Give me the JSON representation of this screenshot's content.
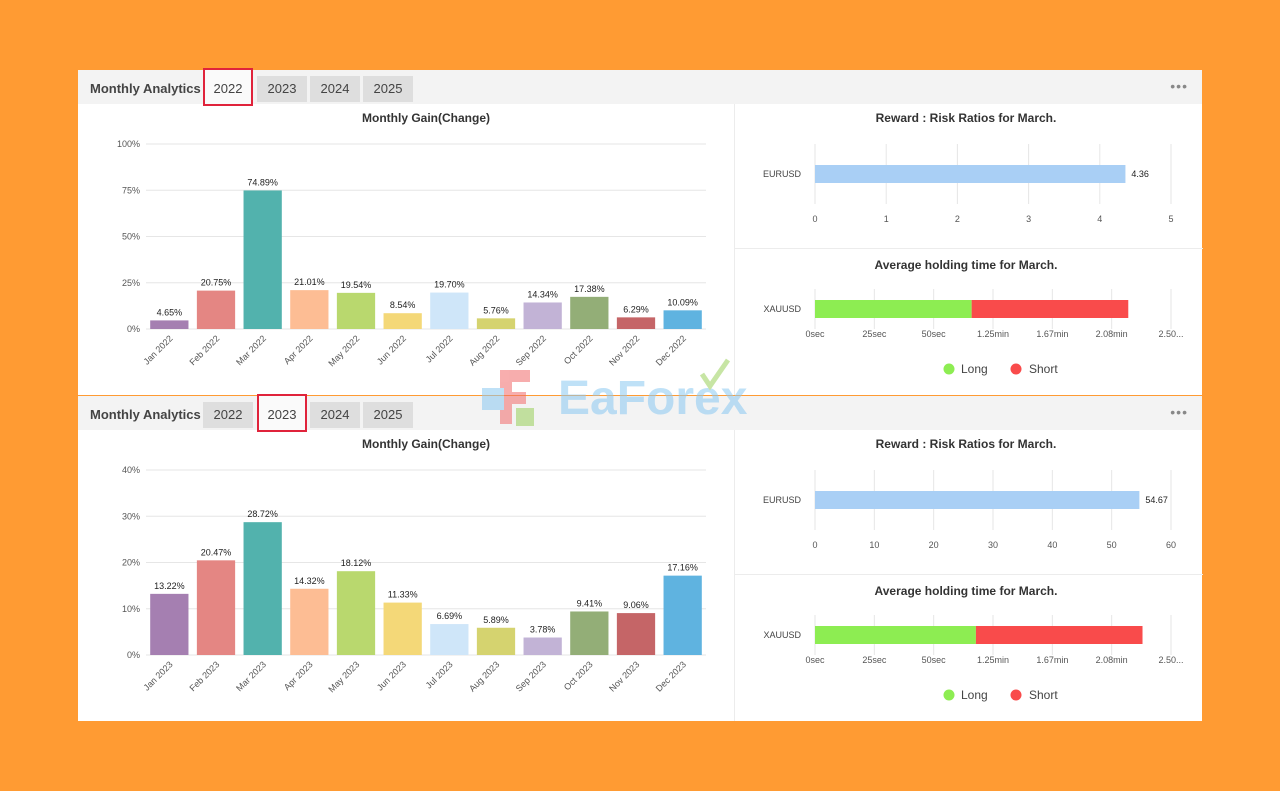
{
  "colors": [
    "#a57fb1",
    "#e48683",
    "#52b2ad",
    "#fdbd94",
    "#b9d86e",
    "#f4d878",
    "#cfe6f9",
    "#d5d36f",
    "#c2b3d6",
    "#93ae77",
    "#c56567",
    "#5fb3e0"
  ],
  "brand": {
    "text": "EaForex"
  },
  "panels": [
    {
      "title": "Monthly Analytics",
      "tabs": [
        "2022",
        "2023",
        "2024",
        "2025"
      ],
      "active_tab": 0,
      "more_label": "•••",
      "gain_chart": {
        "type": "bar",
        "title": "Monthly Gain(Change)",
        "categories": [
          "Jan 2022",
          "Feb 2022",
          "Mar 2022",
          "Apr 2022",
          "May 2022",
          "Jun 2022",
          "Jul 2022",
          "Aug 2022",
          "Sep 2022",
          "Oct 2022",
          "Nov 2022",
          "Dec 2022"
        ],
        "values": [
          4.65,
          20.75,
          74.89,
          21.01,
          19.54,
          8.54,
          19.7,
          5.76,
          14.34,
          17.38,
          6.29,
          10.09
        ],
        "labels": [
          "4.65%",
          "20.75%",
          "74.89%",
          "21.01%",
          "19.54%",
          "8.54%",
          "19.70%",
          "5.76%",
          "14.34%",
          "17.38%",
          "6.29%",
          "10.09%"
        ],
        "yticks": [
          "0%",
          "25%",
          "50%",
          "75%",
          "100%"
        ],
        "ylim": [
          0,
          100
        ]
      },
      "rr_chart": {
        "type": "bar",
        "title": "Reward : Risk Ratios for March.",
        "category": "EURUSD",
        "value": 4.36,
        "label": "4.36",
        "xticks": [
          "0",
          "1",
          "2",
          "3",
          "4",
          "5"
        ],
        "xlim": [
          0,
          5
        ],
        "color": "#a9cff5"
      },
      "hold_chart": {
        "type": "bar",
        "title": "Average holding time for March.",
        "category": "XAUUSD",
        "long_value": 1.1,
        "short_value": 1.1,
        "xticks": [
          "0sec",
          "25sec",
          "50sec",
          "1.25min",
          "1.67min",
          "2.08min",
          "2.50..."
        ],
        "xlim": [
          0,
          2.5
        ],
        "legend": [
          "Long",
          "Short"
        ],
        "long_color": "#8ded52",
        "short_color": "#f94b4b"
      }
    },
    {
      "title": "Monthly Analytics",
      "tabs": [
        "2022",
        "2023",
        "2024",
        "2025"
      ],
      "active_tab": 1,
      "more_label": "•••",
      "gain_chart": {
        "type": "bar",
        "title": "Monthly Gain(Change)",
        "categories": [
          "Jan 2023",
          "Feb 2023",
          "Mar 2023",
          "Apr 2023",
          "May 2023",
          "Jun 2023",
          "Jul 2023",
          "Aug 2023",
          "Sep 2023",
          "Oct 2023",
          "Nov 2023",
          "Dec 2023"
        ],
        "values": [
          13.22,
          20.47,
          28.72,
          14.32,
          18.12,
          11.33,
          6.69,
          5.89,
          3.78,
          9.41,
          9.06,
          17.16
        ],
        "labels": [
          "13.22%",
          "20.47%",
          "28.72%",
          "14.32%",
          "18.12%",
          "11.33%",
          "6.69%",
          "5.89%",
          "3.78%",
          "9.41%",
          "9.06%",
          "17.16%"
        ],
        "yticks": [
          "0%",
          "10%",
          "20%",
          "30%",
          "40%"
        ],
        "ylim": [
          0,
          40
        ]
      },
      "rr_chart": {
        "type": "bar",
        "title": "Reward : Risk Ratios for March.",
        "category": "EURUSD",
        "value": 54.67,
        "label": "54.67",
        "xticks": [
          "0",
          "10",
          "20",
          "30",
          "40",
          "50",
          "60"
        ],
        "xlim": [
          0,
          60
        ],
        "color": "#a9cff5"
      },
      "hold_chart": {
        "type": "bar",
        "title": "Average holding time for March.",
        "category": "XAUUSD",
        "long_value": 1.13,
        "short_value": 1.17,
        "xticks": [
          "0sec",
          "25sec",
          "50sec",
          "1.25min",
          "1.67min",
          "2.08min",
          "2.50..."
        ],
        "xlim": [
          0,
          2.5
        ],
        "legend": [
          "Long",
          "Short"
        ],
        "long_color": "#8ded52",
        "short_color": "#f94b4b"
      }
    }
  ]
}
